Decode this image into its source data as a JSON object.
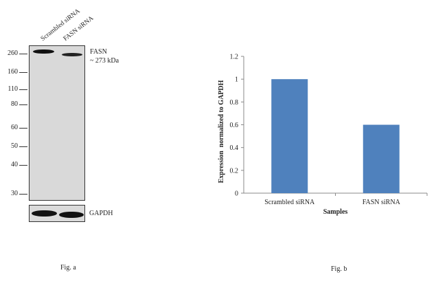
{
  "blot": {
    "lanes": [
      "Scrambled siRNA",
      "FASN siRNA"
    ],
    "markers": [
      "260",
      "160",
      "110",
      "80",
      "60",
      "50",
      "40",
      "30"
    ],
    "target_label": "FASN",
    "target_size": "~ 273 kDa",
    "loading_control": "GAPDH",
    "caption": "Fig. a"
  },
  "chart_data": {
    "type": "bar",
    "categories": [
      "Scrambled siRNA",
      "FASN siRNA"
    ],
    "values": [
      1.0,
      0.6
    ],
    "title": "",
    "xlabel": "Samples",
    "ylabel": "Expression  normalized to GAPDH",
    "ylim": [
      0,
      1.2
    ],
    "yticks": [
      "0",
      "0.2",
      "0.4",
      "0.6",
      "0.8",
      "1",
      "1.2"
    ],
    "bar_color": "#4f81bd",
    "grid": false
  },
  "chart_caption": "Fig. b"
}
